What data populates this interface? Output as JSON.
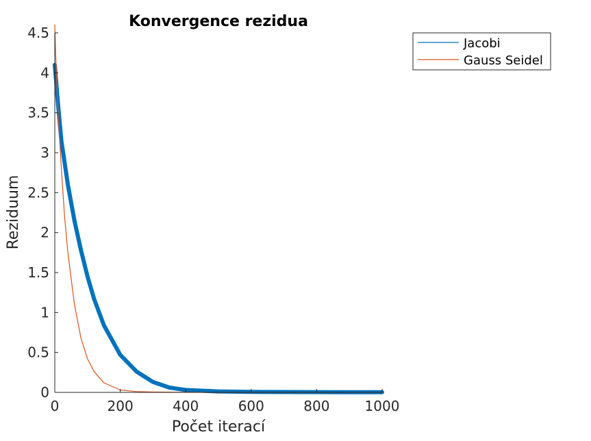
{
  "chart_data": {
    "type": "line",
    "title": "Konvergence rezidua",
    "xlabel": "Počet iterací",
    "ylabel": "Reziduum",
    "xlim": [
      0,
      1000
    ],
    "ylim": [
      0,
      4.5
    ],
    "xticks": [
      "0",
      "200",
      "400",
      "600",
      "800",
      "1000"
    ],
    "yticks": [
      "0",
      "0.5",
      "1",
      "1.5",
      "2",
      "2.5",
      "3",
      "3.5",
      "4",
      "4.5"
    ],
    "legend_position": "outside-top-right",
    "series": [
      {
        "name": "Jacobi",
        "color": "#0072BD",
        "x": [
          0,
          10,
          20,
          40,
          60,
          80,
          100,
          120,
          150,
          200,
          250,
          300,
          350,
          400,
          500,
          600,
          800,
          1000
        ],
        "y": [
          4.1,
          3.6,
          3.15,
          2.6,
          2.15,
          1.78,
          1.45,
          1.17,
          0.84,
          0.47,
          0.26,
          0.13,
          0.06,
          0.03,
          0.012,
          0.006,
          0.003,
          0.002
        ]
      },
      {
        "name": "Gauss Seidel",
        "color": "#D95319",
        "x": [
          0,
          3,
          10,
          20,
          30,
          40,
          60,
          80,
          100,
          120,
          150,
          200,
          250,
          300,
          400,
          600,
          800,
          1000
        ],
        "y": [
          4.6,
          4.2,
          3.5,
          2.8,
          2.2,
          1.75,
          1.1,
          0.68,
          0.42,
          0.26,
          0.12,
          0.03,
          0.01,
          0.004,
          0.001,
          0.0,
          0.0,
          0.0
        ]
      }
    ]
  }
}
